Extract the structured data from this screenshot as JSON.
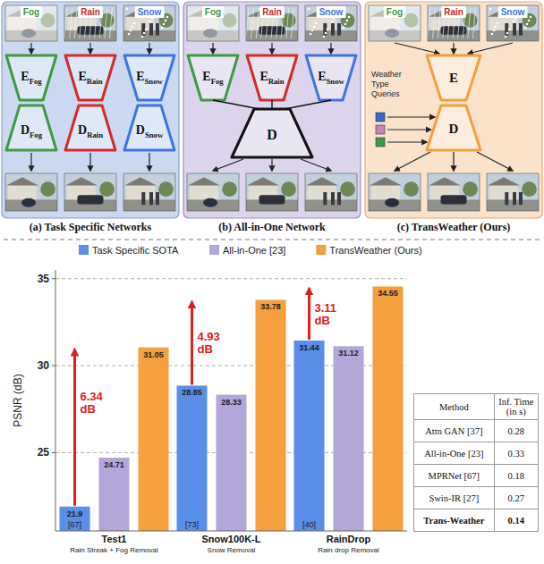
{
  "diagram": {
    "panels": [
      {
        "caption": "(a) Task Specific Networks",
        "inputs": [
          "Fog",
          "Rain",
          "Snow"
        ],
        "encoders": [
          {
            "main": "E",
            "sub": "Fog"
          },
          {
            "main": "E",
            "sub": "Rain"
          },
          {
            "main": "E",
            "sub": "Snow"
          }
        ],
        "decoders": [
          {
            "main": "D",
            "sub": "Fog"
          },
          {
            "main": "D",
            "sub": "Rain"
          },
          {
            "main": "D",
            "sub": "Snow"
          }
        ]
      },
      {
        "caption": "(b) All-in-One Network",
        "inputs": [
          "Fog",
          "Rain",
          "Snow"
        ],
        "encoders": [
          {
            "main": "E",
            "sub": "Fog"
          },
          {
            "main": "E",
            "sub": "Rain"
          },
          {
            "main": "E",
            "sub": "Snow"
          }
        ],
        "decoders": [
          {
            "main": "D"
          }
        ]
      },
      {
        "caption": "(c) TransWeather (Ours)",
        "inputs": [
          "Fog",
          "Rain",
          "Snow"
        ],
        "encoders": [
          {
            "main": "E"
          }
        ],
        "decoders": [
          {
            "main": "D"
          }
        ],
        "queries_label": "Weather Type Queries"
      }
    ]
  },
  "chart_data": {
    "type": "bar",
    "ylabel": "PSNR (dB)",
    "categories": [
      "Test1",
      "Snow100K-L",
      "RainDrop"
    ],
    "category_notes": [
      "Rain Streak + Fog Removal",
      "Snow Removal",
      "Rain drop Removal"
    ],
    "series": [
      {
        "name": "Task Specific SOTA",
        "color": "#5b8ee8",
        "values": [
          21.9,
          28.85,
          31.44
        ],
        "refs": [
          "[67]",
          "[73]",
          "[40]"
        ]
      },
      {
        "name": "All-in-One [23]",
        "color": "#b3a6d8",
        "values": [
          24.71,
          28.33,
          31.12
        ]
      },
      {
        "name": "TransWeather (Ours)",
        "color": "#f5a03e",
        "values": [
          31.05,
          33.78,
          34.55
        ]
      }
    ],
    "ylim": [
      20.5,
      35.5
    ],
    "yticks": [
      25,
      30,
      35
    ],
    "grid": true,
    "legend": "top",
    "data_labels": true,
    "annotations": [
      "6.34 dB",
      "4.93 dB",
      "3.11 dB"
    ]
  },
  "table": {
    "header": [
      "Method",
      "Inf. Time (in s)"
    ],
    "rows": [
      [
        "Attn GAN [37]",
        0.28
      ],
      [
        "All-in-One [23]",
        0.33
      ],
      [
        "MPRNet [67]",
        0.18
      ],
      [
        "Swin-IR [27]",
        0.27
      ],
      [
        "Trans-Weather",
        0.14
      ]
    ]
  }
}
